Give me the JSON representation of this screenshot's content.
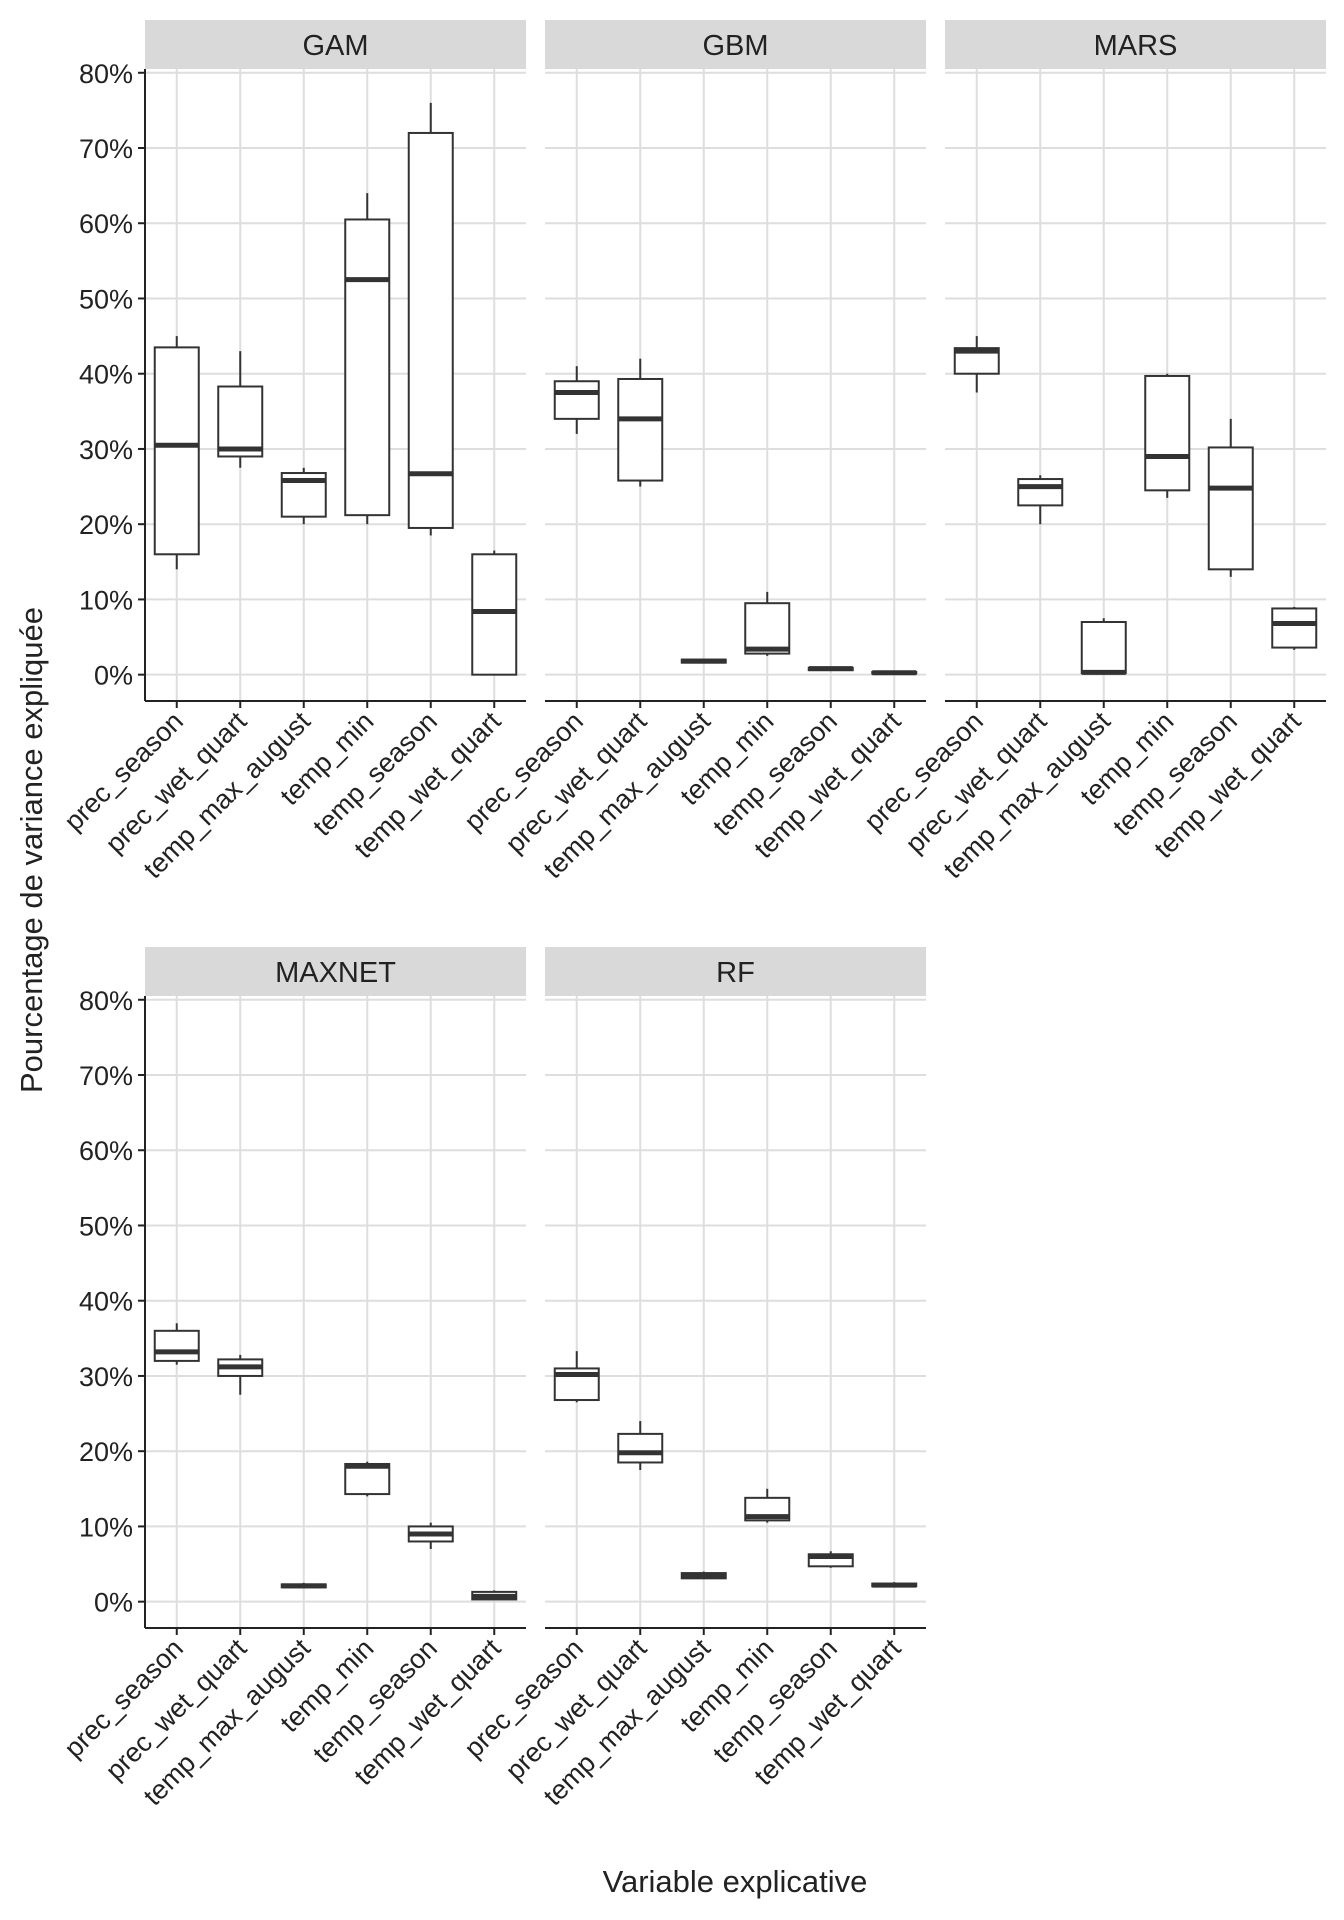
{
  "chart_data": {
    "type": "boxplot",
    "facets_layout": "3 columns x 2 rows",
    "xlabel": "Variable explicative",
    "ylabel": "Pourcentage de variance expliquée",
    "ylim": [
      -3.5,
      80.5
    ],
    "y_ticks": [
      0,
      10,
      20,
      30,
      40,
      50,
      60,
      70,
      80
    ],
    "y_tick_labels": [
      "0%",
      "10%",
      "20%",
      "30%",
      "40%",
      "50%",
      "60%",
      "70%",
      "80%"
    ],
    "categories": [
      "prec_season",
      "prec_wet_quart",
      "temp_max_august",
      "temp_min",
      "temp_season",
      "temp_wet_quart"
    ],
    "grid": true,
    "colors": {
      "strip_bg": "#d9d9d9",
      "grid": "#dedede",
      "box_line": "#333333",
      "box_fill": "#ffffff",
      "axis": "#222222"
    },
    "facets": [
      {
        "name": "GAM",
        "boxes": [
          {
            "min": 14,
            "q1": 16,
            "median": 30.5,
            "q3": 43.5,
            "max": 45
          },
          {
            "min": 27.5,
            "q1": 29,
            "median": 30,
            "q3": 38.3,
            "max": 43
          },
          {
            "min": 20,
            "q1": 21,
            "median": 25.8,
            "q3": 26.8,
            "max": 27.5
          },
          {
            "min": 20,
            "q1": 21.2,
            "median": 52.5,
            "q3": 60.5,
            "max": 64
          },
          {
            "min": 18.5,
            "q1": 19.5,
            "median": 26.7,
            "q3": 72,
            "max": 76
          },
          {
            "min": 0,
            "q1": 0,
            "median": 8.4,
            "q3": 16,
            "max": 16.5
          }
        ]
      },
      {
        "name": "GBM",
        "boxes": [
          {
            "min": 32,
            "q1": 34,
            "median": 37.5,
            "q3": 39,
            "max": 41
          },
          {
            "min": 25,
            "q1": 25.8,
            "median": 34,
            "q3": 39.3,
            "max": 42
          },
          {
            "min": 1.5,
            "q1": 1.6,
            "median": 1.8,
            "q3": 2,
            "max": 2.1
          },
          {
            "min": 2.5,
            "q1": 2.8,
            "median": 3.4,
            "q3": 9.5,
            "max": 11
          },
          {
            "min": 0.5,
            "q1": 0.6,
            "median": 0.8,
            "q3": 0.9,
            "max": 1
          },
          {
            "min": 0.1,
            "q1": 0.15,
            "median": 0.25,
            "q3": 0.35,
            "max": 0.4
          }
        ]
      },
      {
        "name": "MARS",
        "boxes": [
          {
            "min": 37.5,
            "q1": 40,
            "median": 43,
            "q3": 43.4,
            "max": 45
          },
          {
            "min": 20,
            "q1": 22.5,
            "median": 25,
            "q3": 26,
            "max": 26.5
          },
          {
            "min": 0,
            "q1": 0.2,
            "median": 0.3,
            "q3": 7,
            "max": 7.5
          },
          {
            "min": 23.5,
            "q1": 24.5,
            "median": 29,
            "q3": 39.7,
            "max": 40
          },
          {
            "min": 13,
            "q1": 14,
            "median": 24.8,
            "q3": 30.2,
            "max": 34
          },
          {
            "min": 3.3,
            "q1": 3.6,
            "median": 6.8,
            "q3": 8.8,
            "max": 9
          }
        ]
      },
      {
        "name": "MAXNET",
        "boxes": [
          {
            "min": 31.5,
            "q1": 32,
            "median": 33.2,
            "q3": 36,
            "max": 37
          },
          {
            "min": 27.5,
            "q1": 30,
            "median": 31.2,
            "q3": 32.2,
            "max": 32.8
          },
          {
            "min": 1.8,
            "q1": 1.9,
            "median": 2.1,
            "q3": 2.3,
            "max": 2.5
          },
          {
            "min": 14,
            "q1": 14.3,
            "median": 18,
            "q3": 18.3,
            "max": 18.6
          },
          {
            "min": 7,
            "q1": 8,
            "median": 9,
            "q3": 10,
            "max": 10.5
          },
          {
            "min": 0.2,
            "q1": 0.3,
            "median": 0.7,
            "q3": 1.3,
            "max": 1.5
          }
        ]
      },
      {
        "name": "RF",
        "boxes": [
          {
            "min": 26.5,
            "q1": 26.8,
            "median": 30.2,
            "q3": 31,
            "max": 33.3
          },
          {
            "min": 17.5,
            "q1": 18.5,
            "median": 19.8,
            "q3": 22.3,
            "max": 24
          },
          {
            "min": 3,
            "q1": 3.1,
            "median": 3.4,
            "q3": 3.8,
            "max": 4
          },
          {
            "min": 10.5,
            "q1": 10.8,
            "median": 11.3,
            "q3": 13.8,
            "max": 15
          },
          {
            "min": 4.5,
            "q1": 4.7,
            "median": 6,
            "q3": 6.3,
            "max": 6.7
          },
          {
            "min": 2,
            "q1": 2.05,
            "median": 2.2,
            "q3": 2.4,
            "max": 2.6
          }
        ]
      }
    ]
  }
}
